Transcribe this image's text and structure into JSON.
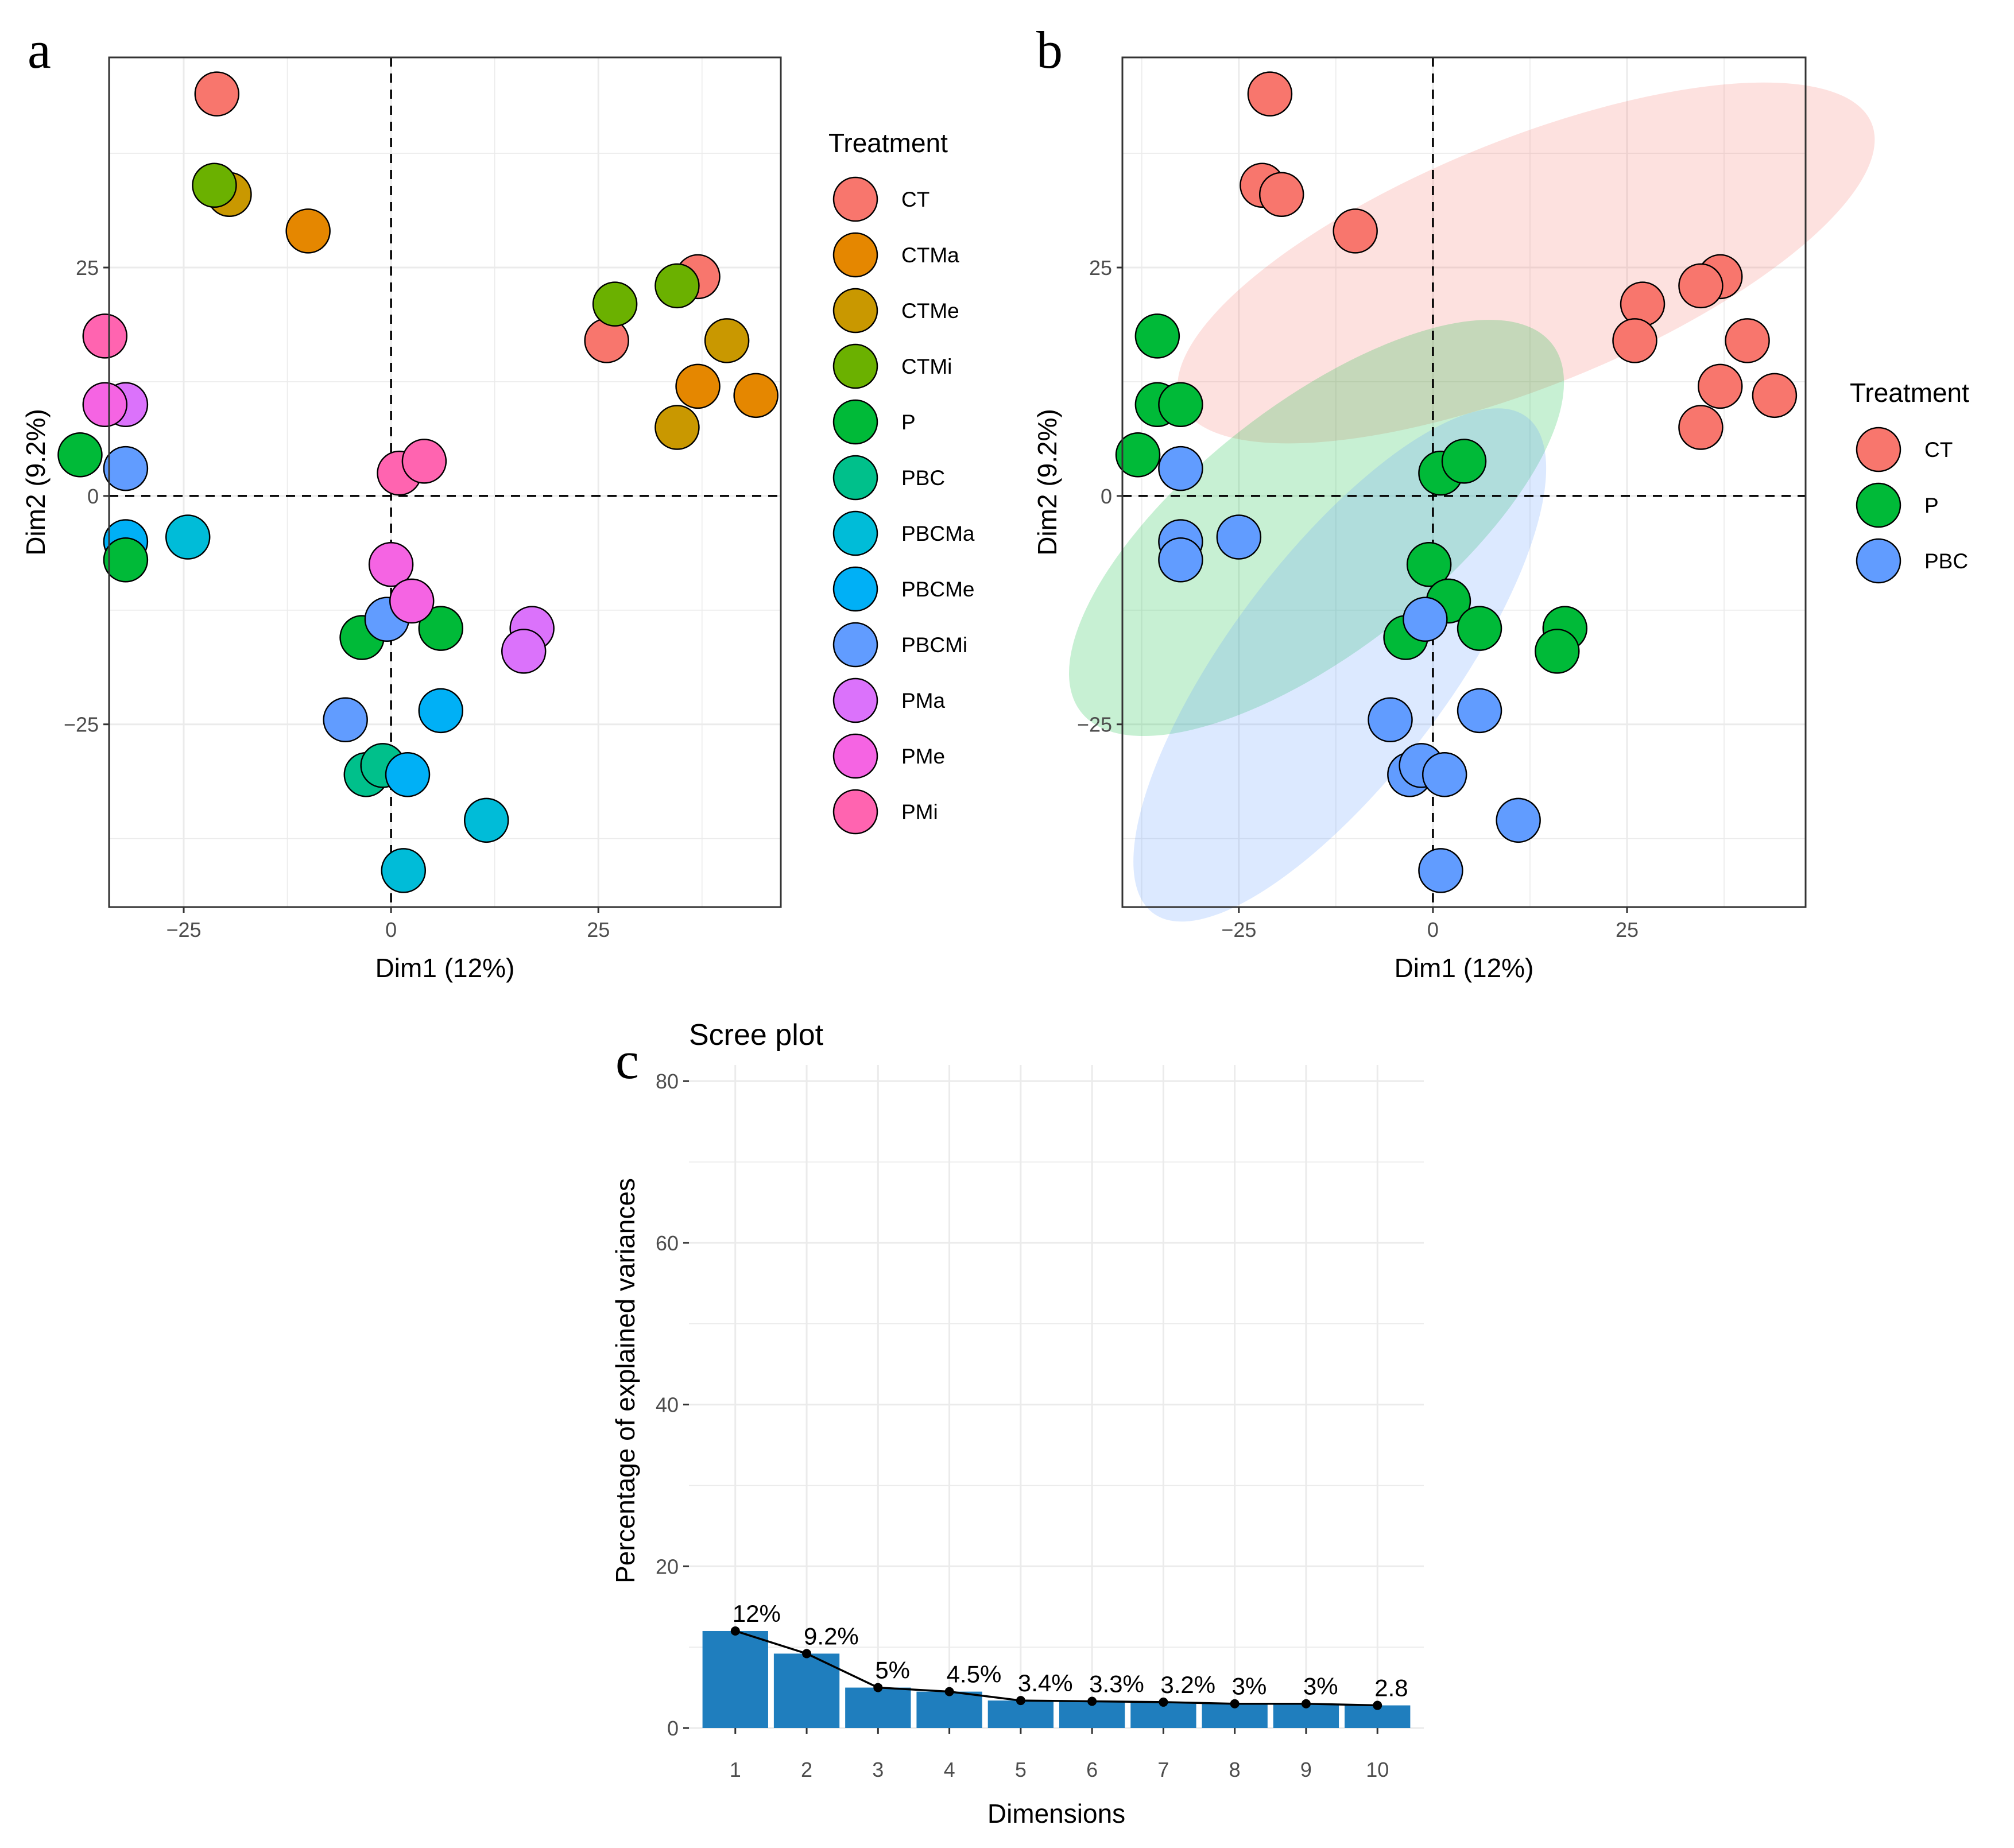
{
  "panels": {
    "a": {
      "label": "a"
    },
    "b": {
      "label": "b"
    },
    "c": {
      "label": "c"
    }
  },
  "chart_data": [
    {
      "id": "a",
      "type": "scatter",
      "title": "",
      "xlabel": "Dim1 (12%)",
      "ylabel": "Dim2 (9.2%)",
      "xlim": [
        -34,
        47
      ],
      "ylim": [
        -45,
        48
      ],
      "xticks": [
        -25,
        0,
        25
      ],
      "xtick_labels": [
        "−25",
        "0",
        "25"
      ],
      "yticks": [
        -25,
        0,
        25
      ],
      "ytick_labels": [
        "−25",
        "0",
        "25"
      ],
      "grid": true,
      "reference_lines": {
        "x": 0,
        "y": 0,
        "style": "dashed"
      },
      "legend": {
        "title": "Treatment",
        "position": "right"
      },
      "series": [
        {
          "name": "CT",
          "color": "#F8766D",
          "points": [
            [
              -21,
              44
            ],
            [
              37,
              24
            ],
            [
              26,
              17
            ]
          ]
        },
        {
          "name": "CTMa",
          "color": "#E58700",
          "points": [
            [
              -10,
              29
            ],
            [
              37,
              12
            ],
            [
              44,
              11
            ]
          ]
        },
        {
          "name": "CTMe",
          "color": "#C99800",
          "points": [
            [
              -19.5,
              33
            ],
            [
              40.5,
              17
            ],
            [
              34.5,
              7.5
            ]
          ]
        },
        {
          "name": "CTMi",
          "color": "#6BB100",
          "points": [
            [
              -21.3,
              34
            ],
            [
              27,
              21
            ],
            [
              34.5,
              23
            ]
          ]
        },
        {
          "name": "P",
          "color": "#00BA38",
          "points": [
            [
              -37.5,
              4.5
            ],
            [
              -3.5,
              -15.5
            ],
            [
              6,
              -14.5
            ]
          ]
        },
        {
          "name": "PBC",
          "color": "#00C08B",
          "points": [
            [
              -3,
              -30.5
            ],
            [
              -1,
              -29.5
            ]
          ]
        },
        {
          "name": "PBCMa",
          "color": "#00BCD8",
          "points": [
            [
              -24.5,
              -4.5
            ],
            [
              11.5,
              -35.5
            ],
            [
              1.5,
              -41
            ]
          ]
        },
        {
          "name": "PBCMe",
          "color": "#00B0F6",
          "points": [
            [
              -32,
              -5
            ],
            [
              6,
              -23.5
            ],
            [
              2,
              -30.5
            ]
          ]
        },
        {
          "name": "PBCMi",
          "color": "#619CFF",
          "points": [
            [
              -32,
              3
            ],
            [
              -5.5,
              -24.5
            ],
            [
              -0.5,
              -13.5
            ]
          ]
        },
        {
          "name": "PMa",
          "color": "#DB72FB",
          "points": [
            [
              -32,
              10
            ],
            [
              17,
              -14.5
            ],
            [
              16,
              -17
            ]
          ]
        },
        {
          "name": "PMe",
          "color": "#F564E3",
          "points": [
            [
              -34.5,
              10
            ],
            [
              0,
              -7.5
            ],
            [
              2.5,
              -11.5
            ]
          ]
        },
        {
          "name": "PMi",
          "color": "#FF64B0",
          "points": [
            [
              -34.5,
              17.5
            ],
            [
              1,
              2.5
            ],
            [
              4,
              3.8
            ]
          ]
        },
        {
          "name": "",
          "color": "#00BA38",
          "points": [
            [
              -32,
              -7
            ]
          ]
        }
      ]
    },
    {
      "id": "b",
      "type": "scatter",
      "title": "",
      "xlabel": "Dim1 (12%)",
      "ylabel": "Dim2 (9.2%)",
      "xlim": [
        -40,
        48
      ],
      "ylim": [
        -45,
        48
      ],
      "xticks": [
        -25,
        0,
        25
      ],
      "xtick_labels": [
        "−25",
        "0",
        "25"
      ],
      "yticks": [
        -25,
        0,
        25
      ],
      "ytick_labels": [
        "−25",
        "0",
        "25"
      ],
      "grid": true,
      "reference_lines": {
        "x": 0,
        "y": 0,
        "style": "dashed"
      },
      "legend": {
        "title": "Treatment",
        "position": "right"
      },
      "ellipses": [
        {
          "group": "CT",
          "color": "#F8766D",
          "cx": 12,
          "cy": 25.5,
          "rx": 48,
          "ry": 13.5,
          "angle_deg": -22
        },
        {
          "group": "P",
          "color": "#00BA38",
          "cx": -15,
          "cy": -3.5,
          "rx": 38.5,
          "ry": 13.5,
          "angle_deg": -38
        },
        {
          "group": "PBC",
          "color": "#619CFF",
          "cx": -12,
          "cy": -18.5,
          "rx": 40,
          "ry": 12,
          "angle_deg": -53
        }
      ],
      "series": [
        {
          "name": "CT",
          "color": "#F8766D",
          "points": [
            [
              -21,
              44
            ],
            [
              -22,
              34
            ],
            [
              -19.5,
              33
            ],
            [
              -10,
              29
            ],
            [
              37,
              24
            ],
            [
              34.5,
              23
            ],
            [
              27,
              21
            ],
            [
              26,
              17
            ],
            [
              40.5,
              17
            ],
            [
              37,
              12
            ],
            [
              44,
              11
            ],
            [
              34.5,
              7.5
            ]
          ]
        },
        {
          "name": "P",
          "color": "#00BA38",
          "points": [
            [
              -35.5,
              17.5
            ],
            [
              -35.5,
              10
            ],
            [
              -32.5,
              10
            ],
            [
              -38,
              4.5
            ],
            [
              1,
              2.5
            ],
            [
              4,
              3.8
            ],
            [
              -0.5,
              -7.5
            ],
            [
              2,
              -11.5
            ],
            [
              -3.5,
              -15.5
            ],
            [
              6,
              -14.5
            ],
            [
              17,
              -14.5
            ],
            [
              16,
              -17
            ]
          ]
        },
        {
          "name": "PBC",
          "color": "#619CFF",
          "points": [
            [
              -32.5,
              3
            ],
            [
              -32.5,
              -5
            ],
            [
              -32.5,
              -7
            ],
            [
              -25,
              -4.5
            ],
            [
              -1,
              -13.5
            ],
            [
              -5.5,
              -24.5
            ],
            [
              6,
              -23.5
            ],
            [
              -3,
              -30.5
            ],
            [
              -1.5,
              -29.5
            ],
            [
              1.5,
              -30.5
            ],
            [
              11,
              -35.5
            ],
            [
              1,
              -41
            ]
          ]
        }
      ]
    },
    {
      "id": "c",
      "type": "bar",
      "title": "Scree plot",
      "xlabel": "Dimensions",
      "ylabel": "Percentage of explained variances",
      "categories": [
        "1",
        "2",
        "3",
        "4",
        "5",
        "6",
        "7",
        "8",
        "9",
        "10"
      ],
      "values": [
        12,
        9.2,
        5,
        4.5,
        3.4,
        3.3,
        3.2,
        3,
        3,
        2.8
      ],
      "data_labels": [
        "12%",
        "9.2%",
        "5%",
        "4.5%",
        "3.4%",
        "3.3%",
        "3.2%",
        "3%",
        "3%",
        "2.8"
      ],
      "ylim": [
        0,
        82
      ],
      "yticks": [
        0,
        20,
        40,
        60,
        80
      ],
      "ytick_labels": [
        "0",
        "20",
        "40",
        "60",
        "80"
      ],
      "bar_color": "#1F7EBE",
      "line_overlay": true,
      "grid": true
    }
  ]
}
